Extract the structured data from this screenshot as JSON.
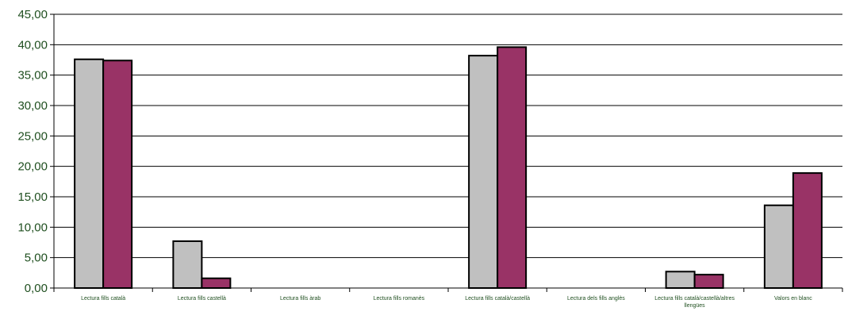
{
  "chart_data": {
    "type": "bar",
    "title": "",
    "xlabel": "",
    "ylabel": "",
    "ylim": [
      0,
      45
    ],
    "yticks": [
      "0,00",
      "5,00",
      "10,00",
      "15,00",
      "20,00",
      "25,00",
      "30,00",
      "35,00",
      "40,00",
      "45,00"
    ],
    "grid": true,
    "legend": "none",
    "categories": [
      "Lectura fills català",
      "Lectura fills castellà",
      "Lectura fills àrab",
      "Lectura fills romanès",
      "Lectura fills català/castellà",
      "Lectura dels fills anglès",
      "Lectura fills català/castellà/altres llengües",
      "Valors en blanc"
    ],
    "series": [
      {
        "color": "#c0c0c0",
        "values": [
          37.6,
          7.7,
          0,
          0,
          38.2,
          0,
          2.7,
          13.6
        ]
      },
      {
        "color": "#993366",
        "values": [
          37.4,
          1.6,
          0,
          0,
          39.6,
          0,
          2.2,
          18.9
        ]
      }
    ]
  }
}
